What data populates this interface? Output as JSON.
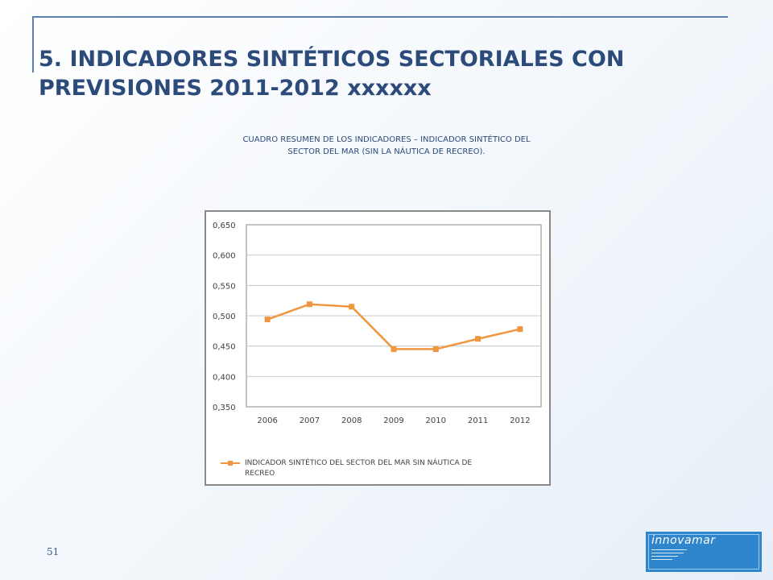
{
  "slide": {
    "title": "5. INDICADORES SINTÉTICOS SECTORIALES CON PREVISIONES 2011-2012 xxxxxx",
    "caption_line1": "CUADRO RESUMEN DE LOS INDICADORES – INDICADOR SINTÉTICO DEL",
    "caption_line2": "SECTOR DEL MAR (SIN LA NÁUTICA DE RECREO).",
    "page_number": "51",
    "logo_word": "innovamar"
  },
  "colors": {
    "series": "#f0963f",
    "grid": "#c8c8c8",
    "axis_text": "#404040"
  },
  "chart_data": {
    "type": "line",
    "title": "",
    "xlabel": "",
    "ylabel": "",
    "x": [
      "2006",
      "2007",
      "2008",
      "2009",
      "2010",
      "2011",
      "2012"
    ],
    "series": [
      {
        "name": "INDICADOR SINTÉTICO DEL SECTOR DEL MAR SIN NÁUTICA DE RECREO",
        "values": [
          0.494,
          0.519,
          0.515,
          0.445,
          0.445,
          0.462,
          0.478
        ]
      }
    ],
    "ylim": [
      0.35,
      0.65
    ],
    "yticks": [
      "0,650",
      "0,600",
      "0,550",
      "0,500",
      "0,450",
      "0,400",
      "0,350"
    ],
    "grid": true,
    "legend_position": "bottom",
    "legend_line1": "INDICADOR SINTÉTICO DEL SECTOR DEL MAR SIN NÁUTICA DE",
    "legend_line2": "RECREO"
  }
}
